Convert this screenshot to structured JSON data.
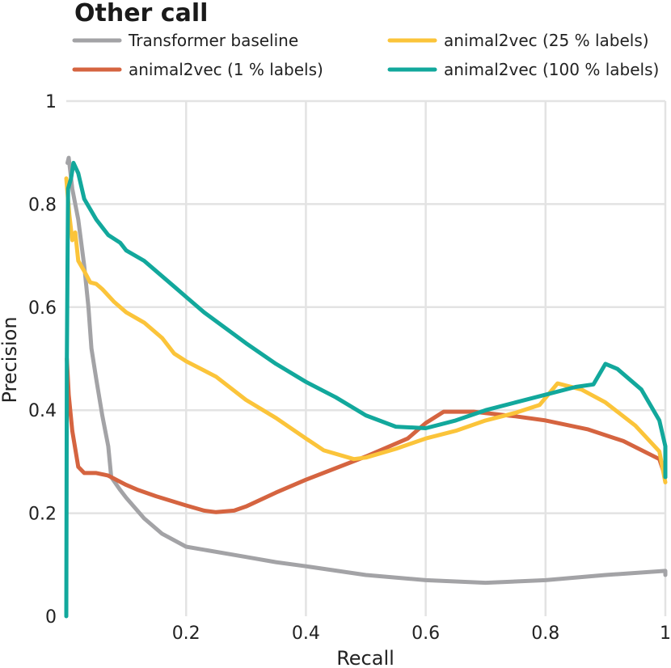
{
  "chart_data": {
    "type": "line",
    "title": "Other call",
    "xlabel": "Recall",
    "ylabel": "Precision",
    "xlim": [
      0,
      1
    ],
    "ylim": [
      0,
      1
    ],
    "grid": true,
    "legend_position": "top",
    "xticks": [
      "0.2",
      "0.4",
      "0.6",
      "0.8",
      "1"
    ],
    "yticks": [
      "0",
      "0.2",
      "0.4",
      "0.6",
      "0.8",
      "1"
    ],
    "series": [
      {
        "name": "Transformer baseline",
        "color": "#a3a3a6",
        "points": [
          [
            0.002,
            0.88
          ],
          [
            0.004,
            0.89
          ],
          [
            0.01,
            0.83
          ],
          [
            0.02,
            0.77
          ],
          [
            0.03,
            0.68
          ],
          [
            0.037,
            0.6
          ],
          [
            0.042,
            0.52
          ],
          [
            0.05,
            0.46
          ],
          [
            0.06,
            0.39
          ],
          [
            0.07,
            0.33
          ],
          [
            0.075,
            0.27
          ],
          [
            0.09,
            0.245
          ],
          [
            0.1,
            0.23
          ],
          [
            0.13,
            0.19
          ],
          [
            0.16,
            0.16
          ],
          [
            0.2,
            0.135
          ],
          [
            0.3,
            0.115
          ],
          [
            0.35,
            0.105
          ],
          [
            0.4,
            0.097
          ],
          [
            0.5,
            0.08
          ],
          [
            0.6,
            0.07
          ],
          [
            0.7,
            0.065
          ],
          [
            0.8,
            0.07
          ],
          [
            0.9,
            0.08
          ],
          [
            1.0,
            0.088
          ],
          [
            1.0,
            0.08
          ]
        ]
      },
      {
        "name": "animal2vec (1 % labels)",
        "color": "#d56440",
        "points": [
          [
            0.001,
            0.5
          ],
          [
            0.004,
            0.43
          ],
          [
            0.01,
            0.36
          ],
          [
            0.02,
            0.29
          ],
          [
            0.03,
            0.278
          ],
          [
            0.05,
            0.278
          ],
          [
            0.07,
            0.273
          ],
          [
            0.1,
            0.255
          ],
          [
            0.12,
            0.245
          ],
          [
            0.15,
            0.233
          ],
          [
            0.2,
            0.215
          ],
          [
            0.23,
            0.205
          ],
          [
            0.25,
            0.202
          ],
          [
            0.28,
            0.205
          ],
          [
            0.3,
            0.213
          ],
          [
            0.35,
            0.24
          ],
          [
            0.4,
            0.265
          ],
          [
            0.5,
            0.31
          ],
          [
            0.57,
            0.345
          ],
          [
            0.6,
            0.375
          ],
          [
            0.63,
            0.397
          ],
          [
            0.68,
            0.397
          ],
          [
            0.75,
            0.388
          ],
          [
            0.8,
            0.38
          ],
          [
            0.87,
            0.363
          ],
          [
            0.93,
            0.34
          ],
          [
            0.99,
            0.305
          ],
          [
            1.0,
            0.27
          ]
        ]
      },
      {
        "name": "animal2vec (25 % labels)",
        "color": "#fbc43a",
        "points": [
          [
            0.0,
            0.85
          ],
          [
            0.005,
            0.78
          ],
          [
            0.01,
            0.73
          ],
          [
            0.015,
            0.745
          ],
          [
            0.02,
            0.69
          ],
          [
            0.03,
            0.67
          ],
          [
            0.04,
            0.648
          ],
          [
            0.05,
            0.645
          ],
          [
            0.06,
            0.635
          ],
          [
            0.08,
            0.61
          ],
          [
            0.1,
            0.59
          ],
          [
            0.13,
            0.57
          ],
          [
            0.16,
            0.54
          ],
          [
            0.18,
            0.51
          ],
          [
            0.2,
            0.495
          ],
          [
            0.25,
            0.465
          ],
          [
            0.3,
            0.42
          ],
          [
            0.35,
            0.385
          ],
          [
            0.4,
            0.345
          ],
          [
            0.43,
            0.322
          ],
          [
            0.48,
            0.305
          ],
          [
            0.5,
            0.308
          ],
          [
            0.55,
            0.325
          ],
          [
            0.6,
            0.345
          ],
          [
            0.65,
            0.36
          ],
          [
            0.7,
            0.38
          ],
          [
            0.75,
            0.395
          ],
          [
            0.79,
            0.41
          ],
          [
            0.82,
            0.452
          ],
          [
            0.86,
            0.44
          ],
          [
            0.9,
            0.415
          ],
          [
            0.95,
            0.37
          ],
          [
            0.99,
            0.32
          ],
          [
            1.0,
            0.26
          ]
        ]
      },
      {
        "name": "animal2vec (100 % labels)",
        "color": "#12a89c",
        "points": [
          [
            0.0,
            0.0
          ],
          [
            0.001,
            0.5
          ],
          [
            0.003,
            0.83
          ],
          [
            0.008,
            0.85
          ],
          [
            0.012,
            0.88
          ],
          [
            0.02,
            0.86
          ],
          [
            0.03,
            0.81
          ],
          [
            0.05,
            0.77
          ],
          [
            0.07,
            0.74
          ],
          [
            0.09,
            0.725
          ],
          [
            0.1,
            0.71
          ],
          [
            0.13,
            0.69
          ],
          [
            0.15,
            0.67
          ],
          [
            0.18,
            0.64
          ],
          [
            0.2,
            0.62
          ],
          [
            0.23,
            0.59
          ],
          [
            0.3,
            0.53
          ],
          [
            0.35,
            0.49
          ],
          [
            0.4,
            0.455
          ],
          [
            0.45,
            0.425
          ],
          [
            0.5,
            0.39
          ],
          [
            0.55,
            0.368
          ],
          [
            0.6,
            0.365
          ],
          [
            0.65,
            0.38
          ],
          [
            0.7,
            0.4
          ],
          [
            0.75,
            0.415
          ],
          [
            0.8,
            0.43
          ],
          [
            0.85,
            0.445
          ],
          [
            0.88,
            0.45
          ],
          [
            0.9,
            0.49
          ],
          [
            0.92,
            0.48
          ],
          [
            0.96,
            0.44
          ],
          [
            0.99,
            0.38
          ],
          [
            1.0,
            0.33
          ],
          [
            1.0,
            0.27
          ]
        ]
      }
    ]
  }
}
